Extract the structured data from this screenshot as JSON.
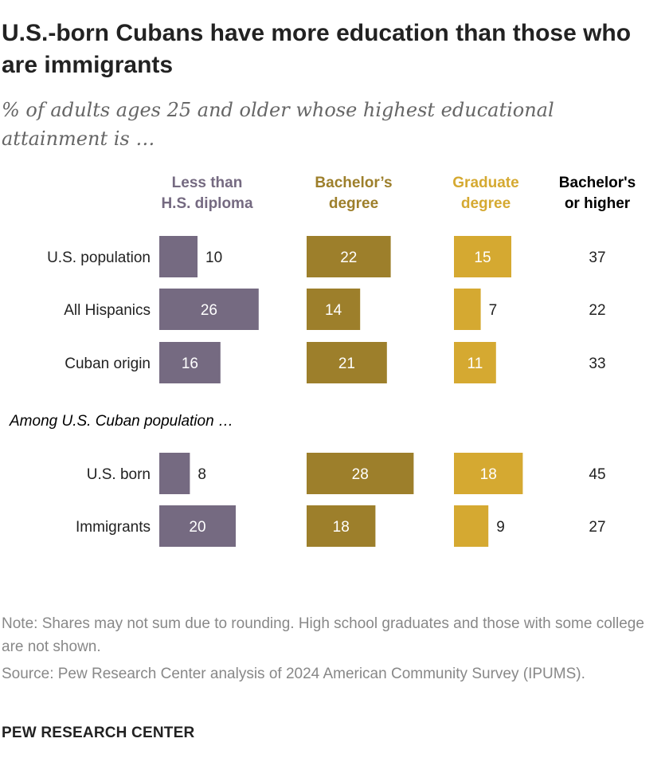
{
  "title": "U.S.-born Cubans have more education than those who are immigrants",
  "subtitle": "% of adults ages 25 and older whose highest educational attainment is …",
  "chart_data": {
    "type": "bar",
    "columns": [
      {
        "key": "less_hs",
        "header_lines": [
          "Less than",
          "H.S. diploma"
        ],
        "color": "#756a81"
      },
      {
        "key": "bachelors",
        "header_lines": [
          "Bachelor’s",
          "degree"
        ],
        "color": "#9d7f2b"
      },
      {
        "key": "graduate",
        "header_lines": [
          "Graduate",
          "degree"
        ],
        "color": "#d5a931"
      },
      {
        "key": "bachelors_or_higher",
        "header_lines": [
          "Bachelor's",
          "or higher"
        ],
        "color": "#000000"
      }
    ],
    "group_label": "Among U.S. Cuban population …",
    "categories": [
      "U.S. population",
      "All Hispanics",
      "Cuban origin",
      "U.S. born",
      "Immigrants"
    ],
    "series": [
      {
        "name": "Less than H.S. diploma",
        "values": [
          10,
          26,
          16,
          8,
          20
        ]
      },
      {
        "name": "Bachelor’s degree",
        "values": [
          22,
          14,
          21,
          28,
          18
        ]
      },
      {
        "name": "Graduate degree",
        "values": [
          15,
          7,
          11,
          18,
          9
        ]
      }
    ],
    "bachelors_or_higher": [
      37,
      22,
      33,
      45,
      27
    ]
  },
  "note": "Note: Shares may not sum due to rounding. High school graduates and those with some college are not shown.",
  "source": "Source: Pew Research Center analysis of 2024 American Community Survey (IPUMS).",
  "footer": "PEW RESEARCH CENTER"
}
